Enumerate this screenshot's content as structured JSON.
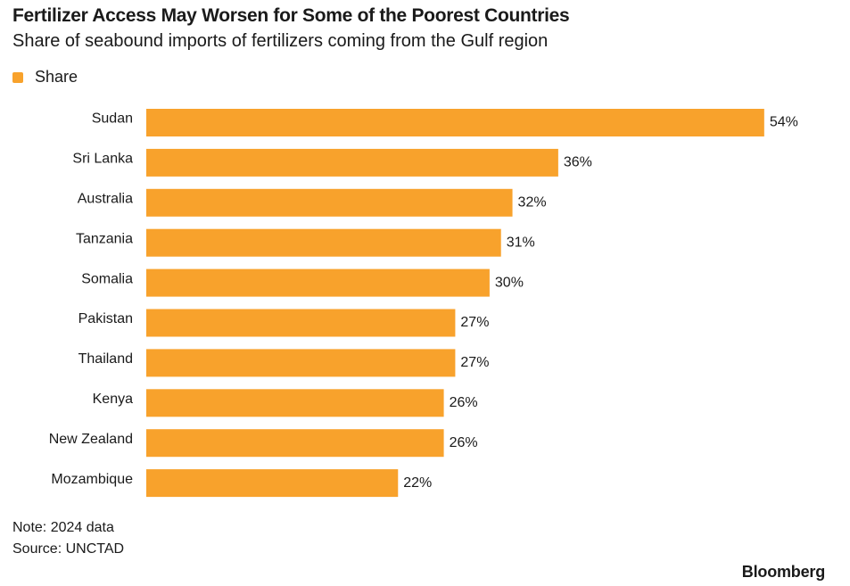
{
  "header": {
    "title": "Fertilizer Access May Worsen for Some of the Poorest Countries",
    "subtitle": "Share of seabound imports of fertilizers coming from the Gulf region"
  },
  "legend": {
    "label": "Share",
    "color": "#F8A22C"
  },
  "footer": {
    "note": "Note: 2024 data",
    "source": "Source: UNCTAD",
    "brand": "Bloomberg"
  },
  "chart_data": {
    "type": "bar",
    "orientation": "horizontal",
    "categories": [
      "Sudan",
      "Sri Lanka",
      "Australia",
      "Tanzania",
      "Somalia",
      "Pakistan",
      "Thailand",
      "Kenya",
      "New Zealand",
      "Mozambique"
    ],
    "series": [
      {
        "name": "Share",
        "values": [
          54,
          36,
          32,
          31,
          30,
          27,
          27,
          26,
          26,
          22
        ],
        "labels": [
          "54%",
          "36%",
          "32%",
          "31%",
          "30%",
          "27%",
          "27%",
          "26%",
          "26%",
          "22%"
        ],
        "color": "#F8A22C"
      }
    ],
    "legend_position": "top-left",
    "grid": false
  }
}
